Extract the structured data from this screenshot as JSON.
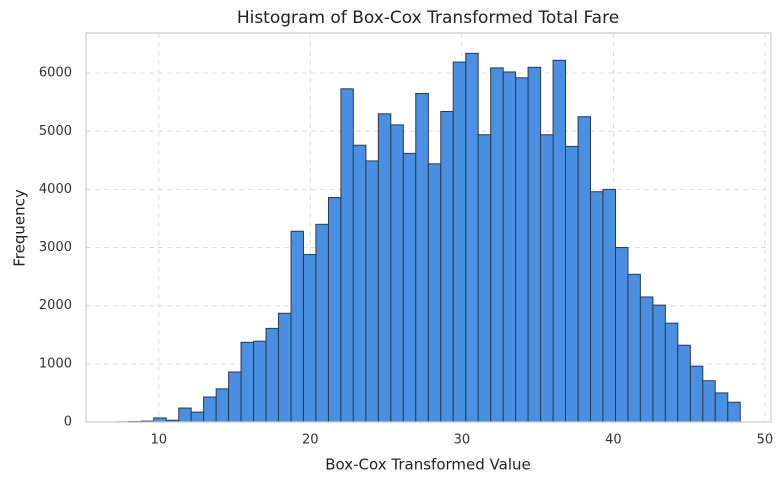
{
  "chart_data": {
    "type": "histogram",
    "title": "Histogram of Box-Cox Transformed Total Fare",
    "x_label": "Box-Cox Transformed Value",
    "y_label": "Frequency",
    "bins": [
      7.2,
      8.02,
      8.85,
      9.67,
      10.49,
      11.32,
      12.14,
      12.96,
      13.79,
      14.61,
      15.43,
      16.26,
      17.08,
      17.9,
      18.73,
      19.55,
      20.37,
      21.2,
      22.02,
      22.84,
      23.67,
      24.49,
      25.31,
      26.14,
      26.96,
      27.79,
      28.61,
      29.43,
      30.26,
      31.08,
      31.9,
      32.73,
      33.55,
      34.37,
      35.2,
      36.02,
      36.84,
      37.67,
      38.49,
      39.31,
      40.14,
      40.96,
      41.78,
      42.61,
      43.43,
      44.25,
      45.08,
      45.9,
      46.72,
      47.55,
      48.37
    ],
    "counts": [
      3,
      8,
      15,
      70,
      30,
      240,
      170,
      430,
      570,
      860,
      1370,
      1390,
      1610,
      1870,
      3280,
      2880,
      3400,
      3860,
      5730,
      4760,
      4490,
      5300,
      5110,
      4620,
      5650,
      4440,
      5340,
      6190,
      6340,
      4940,
      6090,
      6020,
      5920,
      6100,
      4940,
      6220,
      4740,
      5250,
      3960,
      4000,
      3000,
      2540,
      2150,
      2010,
      1700,
      1320,
      960,
      710,
      500,
      340
    ],
    "color": "#4a8fe2",
    "edge_color": "#2a3a4c",
    "xlim": [
      5.2,
      50.4
    ],
    "ylim": [
      0,
      6690
    ],
    "xticks": [
      10,
      20,
      30,
      40,
      50
    ],
    "yticks": [
      0,
      1000,
      2000,
      3000,
      4000,
      5000,
      6000
    ],
    "grid": true
  }
}
